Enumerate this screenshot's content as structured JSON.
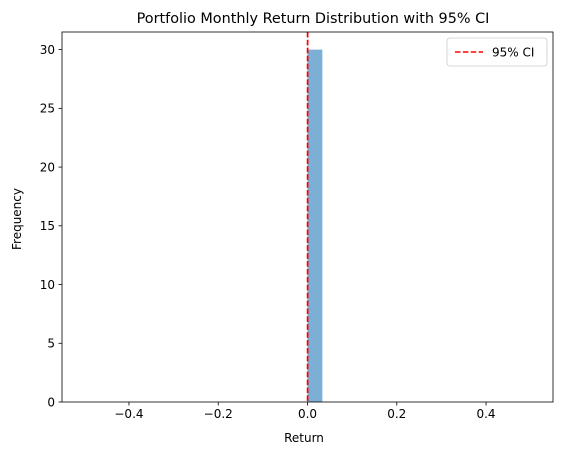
{
  "chart_data": {
    "type": "bar",
    "title": "Portfolio Monthly Return Distribution with 95% CI",
    "xlabel": "Return",
    "ylabel": "Frequency",
    "xlim": [
      -0.55,
      0.55
    ],
    "ylim": [
      0,
      31.5
    ],
    "xticks": [
      -0.4,
      -0.2,
      0.0,
      0.2,
      0.4
    ],
    "xtick_labels": [
      "−0.4",
      "−0.2",
      "0.0",
      "0.2",
      "0.4"
    ],
    "yticks": [
      0,
      5,
      10,
      15,
      20,
      25,
      30
    ],
    "ytick_labels": [
      "0",
      "5",
      "10",
      "15",
      "20",
      "25",
      "30"
    ],
    "grid": false,
    "legend_position": "top-right",
    "bars": [
      {
        "x_start": 0.0,
        "x_end": 0.0333,
        "value": 30
      }
    ],
    "bar_color": "#7bafd6",
    "reference_lines": [
      {
        "name": "95% CI",
        "x": [
          0.0,
          0.0005
        ],
        "style": "dashed",
        "color": "#ff0000"
      }
    ],
    "legend": [
      {
        "label": "95% CI",
        "style": "dashed",
        "color": "#ff0000"
      }
    ]
  }
}
